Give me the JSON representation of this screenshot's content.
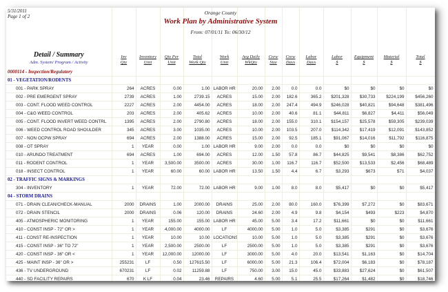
{
  "report": {
    "date": "5/31/2011",
    "page": "Page 1 of 2",
    "county": "Orange County",
    "title": "Work Plan by Administrative System",
    "range": "From: 07/01/11  To: 06/30/12",
    "detail_title": "Detail / Summary",
    "detail_sub": "Adm. System/ Program / Activity"
  },
  "columns": [
    [
      "Inv",
      "Qty"
    ],
    [
      "Inventory",
      "Unit"
    ],
    [
      "Qty Per",
      "Unit"
    ],
    [
      "Total",
      "Work Qty"
    ],
    [
      "Work",
      "Unit"
    ],
    [
      "Avg Daily",
      "WkQty"
    ],
    [
      "Crew",
      "Size"
    ],
    [
      "Crew",
      "Days"
    ],
    [
      "Labor",
      "Days"
    ],
    [
      "Labor",
      "$"
    ],
    [
      "Equipment",
      "$"
    ],
    [
      "Material",
      "$"
    ],
    [
      "Total",
      "$"
    ]
  ],
  "rows": [
    {
      "type": "adm",
      "label": "0000114 - Inspection/Regulatory"
    },
    {
      "type": "sec",
      "label": "01 - VEGETATION/RODENTS"
    },
    {
      "type": "item",
      "v": [
        "001 - PARK SPRAY",
        "264",
        "ACRES",
        "0.00",
        "1.00",
        "LABOR HR",
        "20.00",
        "2.00",
        "0.0",
        "0.0",
        "$0",
        "$0",
        "$0",
        "$0"
      ]
    },
    {
      "type": "item",
      "v": [
        "002 - PRE EMERGENT SPRAY",
        "2739",
        "ACRES",
        "1.00",
        "2739.15",
        "ACRES",
        "15.00",
        "2.00",
        "182.6",
        "365.2",
        "$201,328",
        "$30,733",
        "$224,199",
        "$456,260"
      ]
    },
    {
      "type": "item",
      "v": [
        "003 - CONT. FLOOD WEED CONTROL",
        "2227",
        "ACRES",
        "2.00",
        "4454.00",
        "ACRES",
        "18.00",
        "2.00",
        "247.4",
        "494.9",
        "$246,028",
        "$40,821",
        "$94,648",
        "$381,496"
      ]
    },
    {
      "type": "item",
      "v": [
        "004 - C&G WEED CONTROL",
        "203",
        "ACRES",
        "2.00",
        "405.62",
        "ACRES",
        "10.00",
        "2.00",
        "40.6",
        "81.1",
        "$44,811",
        "$6,827",
        "$4,411",
        "$56,049"
      ]
    },
    {
      "type": "item",
      "v": [
        "005 - CONT. FLOOD INVERT WEED CONTRL",
        "1395",
        "ACRES",
        "2.00",
        "2790.80",
        "ACRES",
        "18.00",
        "2.00",
        "155.0",
        "310.1",
        "$154,157",
        "$25,578",
        "$59,305",
        "$239,039"
      ]
    },
    {
      "type": "item",
      "v": [
        "006 - WEED CONTROL ROAD SHOULDER",
        "345",
        "ACRES",
        "3.00",
        "1035.00",
        "ACRES",
        "10.00",
        "2.00",
        "103.5",
        "207.0",
        "$114,342",
        "$17,419",
        "$12,091",
        "$143,852"
      ]
    },
    {
      "type": "item",
      "v": [
        "007 - NON OCPW SPRAY",
        "694",
        "ACRES",
        "2.00",
        "1388.00",
        "ACRES",
        "15.00",
        "2.00",
        "92.5",
        "185.1",
        "$91,067",
        "$14,016",
        "$11,792",
        "$116,875"
      ]
    },
    {
      "type": "item",
      "v": [
        "008 - OT SPRAY",
        "1",
        "YEAR",
        "0.00",
        "1.00",
        "LABOR HR",
        "9.00",
        "2.00",
        "0.0",
        "0.0",
        "$0",
        "$0",
        "$0",
        "$0"
      ]
    },
    {
      "type": "item",
      "v": [
        "010 - ARUNDO TREATMENT",
        "694",
        "ACRES",
        "1.00",
        "694.00",
        "ACRES",
        "12.00",
        "1.50",
        "57.8",
        "86.7",
        "$44,825",
        "$9,541",
        "$8,386",
        "$62,752"
      ]
    },
    {
      "type": "item",
      "v": [
        "011 - RODENT CONTROL",
        "1",
        "YEAR",
        "3,500.00",
        "3500.00",
        "ACRES",
        "30.00",
        "1.00",
        "116.7",
        "116.7",
        "$52,500",
        "$13,533",
        "$2,456",
        "$68,489"
      ]
    },
    {
      "type": "item",
      "v": [
        "018 - INSECT CONTROL",
        "1",
        "YEAR",
        "60.00",
        "60.00",
        "LABOR HR",
        "13.50",
        "1.50",
        "4.4",
        "6.7",
        "$3,293",
        "$673",
        "$71",
        "$4,037"
      ]
    },
    {
      "type": "sec",
      "label": "02 - TRAFFIC SIGNS & MARKINGS"
    },
    {
      "type": "item",
      "v": [
        "304 - INVENTORY",
        "1",
        "YEAR",
        "72.00",
        "72.00",
        "LABOR HR",
        "9.00",
        "1.00",
        "8.0",
        "8.0",
        "$5,417",
        "$0",
        "$0",
        "$5,417"
      ]
    },
    {
      "type": "sec",
      "label": "04 - STORM DRAINS"
    },
    {
      "type": "item",
      "v": [
        "071 - DRAIN CLEAN/CHECK-MANUAL",
        "2000",
        "DRAINS",
        "1.00",
        "2000.00",
        "DRAINS",
        "25.00",
        "2.00",
        "80.0",
        "160.0",
        "$76,399",
        "$7,272",
        "$0",
        "$83,671"
      ]
    },
    {
      "type": "item",
      "v": [
        "072 - DRAIN STENCIL",
        "2000",
        "DRAINS",
        "0.06",
        "120.00",
        "DRAINS",
        "24.60",
        "2.00",
        "4.9",
        "9.8",
        "$4,154",
        "$493",
        "$223",
        "$4,870"
      ]
    },
    {
      "type": "item",
      "v": [
        "405 - ATMOSPHERIC MONITORING",
        "1",
        "YEAR",
        "155.00",
        "155.00",
        "LABOR HR",
        "45.00",
        "5.00",
        "3.4",
        "17.2",
        "$11,661",
        "$0",
        "$0",
        "$11,661"
      ]
    },
    {
      "type": "item",
      "v": [
        "410 - CONST INSP - 72\" OR >",
        "1",
        "YEAR",
        "4,000.00",
        "4000.00",
        "LF",
        "4000.00",
        "5.00",
        "1.0",
        "5.0",
        "$3,385",
        "$291",
        "$0",
        "$3,676"
      ]
    },
    {
      "type": "item",
      "v": [
        "411 - CONST RE-INSPECTION",
        "1",
        "YEAR",
        "10.00",
        "10.00",
        "LOCATIONS",
        "10.00",
        "5.00",
        "1.0",
        "5.0",
        "$3,385",
        "$291",
        "$0",
        "$3,676"
      ]
    },
    {
      "type": "item",
      "v": [
        "415 - CONST INSP - 36\" TO 72\"",
        "1",
        "YEAR",
        "2,500.00",
        "2500.00",
        "LF",
        "2500.00",
        "5.00",
        "1.0",
        "5.0",
        "$3,385",
        "$291",
        "$0",
        "$3,676"
      ]
    },
    {
      "type": "item",
      "v": [
        "420 - CONST INSP - 36\" OR <",
        "1",
        "YEAR",
        "12,000.00",
        "12000.00",
        "LF",
        "3000.00",
        "5.00",
        "4.0",
        "20.0",
        "$13,541",
        "$1,163",
        "$0",
        "$14,704"
      ]
    },
    {
      "type": "item",
      "v": [
        "425 - MAINT INSP - 36\" OR >",
        "255231",
        "LF",
        "0.50",
        "127615.50",
        "LF",
        "6000.00",
        "5.00",
        "21.3",
        "106.4",
        "$72,004",
        "$6,183",
        "$0",
        "$78,187"
      ]
    },
    {
      "type": "item",
      "v": [
        "436 - TV UNDERGROUND",
        "670231",
        "LF",
        "0.02",
        "11259.88",
        "LF",
        "750.00",
        "3.00",
        "15.0",
        "45.0",
        "$33,883",
        "$27,624",
        "$0",
        "$61,507"
      ]
    },
    {
      "type": "item",
      "v": [
        "440 - SD FACILITY REPAIRS",
        "670",
        "K LF",
        "0.04",
        "23.46",
        "REPAIRS",
        "4.60",
        "5.00",
        "5.1",
        "25.5",
        "$17,264",
        "$1,482",
        "$0",
        "$18,746"
      ]
    }
  ]
}
